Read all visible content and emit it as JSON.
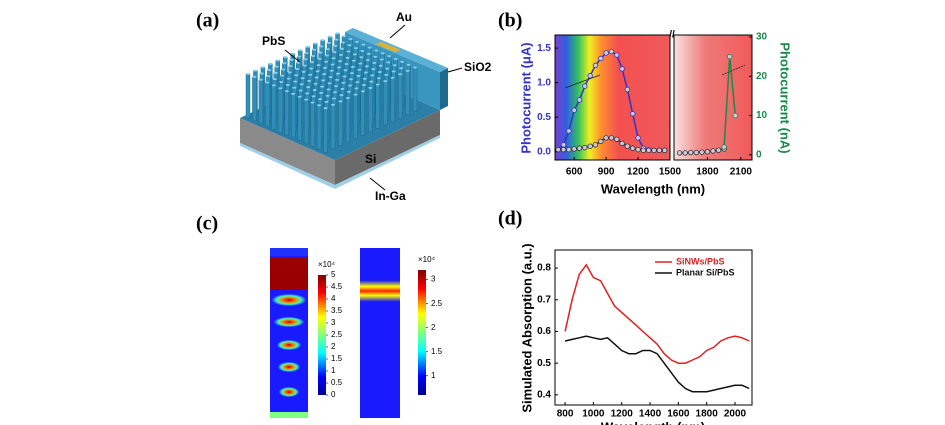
{
  "panels": {
    "a": "(a)",
    "b": "(b)",
    "c": "(c)",
    "d": "(d)"
  },
  "diagram": {
    "labels": [
      "PbS",
      "Au",
      "SiO2",
      "Si",
      "In-Ga"
    ]
  },
  "field_maps": [
    {
      "unit": "×10⁴",
      "lim": [
        0,
        5
      ],
      "ticks": [
        0,
        0.5,
        1,
        1.5,
        2,
        2.5,
        3,
        3.5,
        4,
        4.5,
        5
      ]
    },
    {
      "unit": "×10⁴",
      "lim": [
        0.6,
        3.2
      ],
      "ticks": [
        1,
        1.5,
        2,
        2.5,
        3
      ]
    }
  ],
  "chart_data": [
    {
      "type": "line",
      "xlabel": "Wavelength (nm)",
      "ylabel": "Photocurrent (μA)",
      "y2label": "Photocurrent (nA)",
      "segments": [
        {
          "xlim": [
            420,
            1500
          ],
          "xticks": [
            600,
            900,
            1200,
            1500
          ]
        },
        {
          "xlim": [
            1500,
            2200
          ],
          "xticks": [
            1800,
            2100
          ]
        }
      ],
      "ylim": [
        -0.12,
        1.69
      ],
      "yticks": [
        {
          "value": 0,
          "label": "0.0"
        },
        0.5,
        {
          "value": 1,
          "label": "1.0"
        },
        1.5
      ],
      "y2lim": [
        -1.3,
        30.5
      ],
      "y2ticks": [
        0,
        10,
        20,
        30
      ],
      "series": [
        {
          "segment": 0,
          "color": "#3333cc",
          "x": [
            450,
            500,
            550,
            600,
            650,
            700,
            750,
            800,
            850,
            900,
            950,
            1000,
            1050,
            1100,
            1150,
            1200,
            1250,
            1300,
            1350,
            1400,
            1450
          ],
          "values": [
            0.03,
            0.1,
            0.3,
            0.6,
            0.75,
            0.95,
            1.1,
            1.25,
            1.35,
            1.43,
            1.45,
            1.4,
            1.2,
            0.9,
            0.55,
            0.2,
            0.05,
            0.03,
            0.02,
            0.02,
            0.02
          ]
        },
        {
          "segment": 0,
          "color": "#333333",
          "x": [
            450,
            500,
            550,
            600,
            650,
            700,
            750,
            800,
            850,
            900,
            950,
            1000,
            1050,
            1100,
            1150,
            1200,
            1250,
            1300,
            1350,
            1400,
            1450
          ],
          "values": [
            0.03,
            0.03,
            0.03,
            0.04,
            0.05,
            0.06,
            0.08,
            0.1,
            0.15,
            0.2,
            0.2,
            0.18,
            0.12,
            0.08,
            0.05,
            0.03,
            0.02,
            0.02,
            0.02,
            0.02,
            0.02
          ]
        },
        {
          "segment": 1,
          "axis": "y2",
          "color": "#333333",
          "x": [
            1550,
            1600,
            1650,
            1700,
            1750,
            1800,
            1850,
            1900,
            1950
          ],
          "values": [
            0.5,
            0.5,
            0.6,
            0.6,
            0.7,
            0.8,
            1,
            1.2,
            1.5
          ]
        },
        {
          "segment": 1,
          "axis": "y2",
          "color": "#1a8a4a",
          "x": [
            1950,
            2000,
            2050
          ],
          "values": [
            2,
            25,
            10
          ]
        }
      ]
    },
    {
      "type": "line",
      "xlabel": "Wavelength (nm)",
      "ylabel": "Simulated Absorption (a.u.)",
      "xlim": [
        729,
        2120
      ],
      "xticks": [
        800,
        1000,
        1200,
        1400,
        1600,
        1800,
        2000
      ],
      "ylim": [
        0.368,
        0.857
      ],
      "yticks": [
        0.4,
        0.5,
        0.6,
        0.7,
        0.8
      ],
      "x": [
        800,
        850,
        900,
        950,
        1000,
        1050,
        1100,
        1150,
        1200,
        1250,
        1300,
        1350,
        1400,
        1450,
        1500,
        1550,
        1600,
        1650,
        1700,
        1750,
        1800,
        1850,
        1900,
        1950,
        2000,
        2050,
        2100
      ],
      "series": [
        {
          "name": "SiNWs/PbS",
          "color": "#e02020",
          "values": [
            0.6,
            0.7,
            0.78,
            0.81,
            0.77,
            0.76,
            0.72,
            0.68,
            0.66,
            0.64,
            0.62,
            0.6,
            0.58,
            0.56,
            0.53,
            0.51,
            0.5,
            0.5,
            0.51,
            0.52,
            0.54,
            0.55,
            0.57,
            0.58,
            0.585,
            0.58,
            0.57
          ]
        },
        {
          "name": "Planar Si/PbS",
          "color": "#111111",
          "values": [
            0.57,
            0.575,
            0.58,
            0.585,
            0.58,
            0.575,
            0.58,
            0.56,
            0.54,
            0.53,
            0.53,
            0.54,
            0.54,
            0.53,
            0.5,
            0.47,
            0.44,
            0.42,
            0.41,
            0.41,
            0.41,
            0.415,
            0.42,
            0.425,
            0.43,
            0.43,
            0.42
          ]
        }
      ]
    }
  ]
}
